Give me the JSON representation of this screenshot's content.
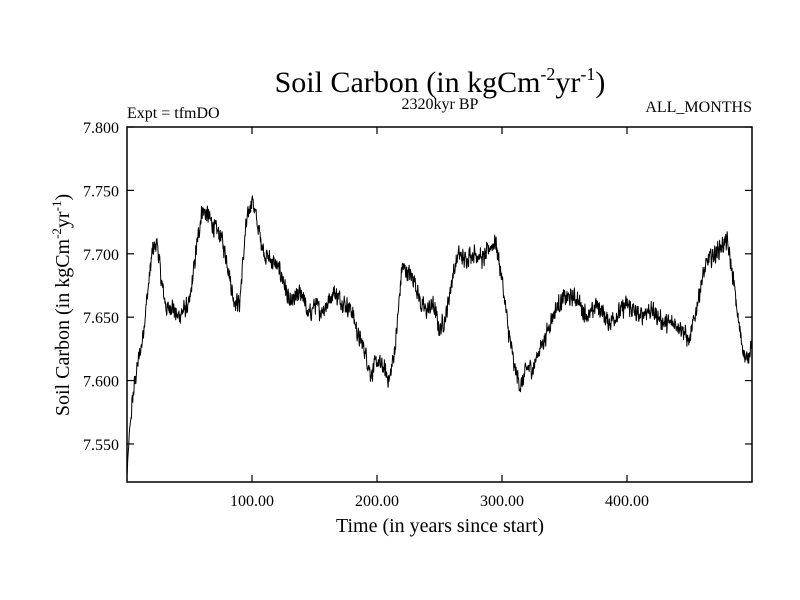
{
  "chart_data": {
    "type": "line",
    "title_prefix": "Soil Carbon (in kgCm",
    "title_sup1": "-2",
    "title_mid": "yr",
    "title_sup2": "-1",
    "title_suffix": ")",
    "subtitle_left": "Expt = tfmDO",
    "subtitle_center": "2320kyr BP",
    "subtitle_right": "ALL_MONTHS",
    "xlabel": "Time (in years since start)",
    "ylabel_prefix": "Soil Carbon (in kgCm",
    "ylabel_sup1": "-2",
    "ylabel_mid": "yr",
    "ylabel_sup2": "-1",
    "ylabel_suffix": ")",
    "xlim": [
      0,
      500
    ],
    "ylim": [
      7.52,
      7.8
    ],
    "xticks": [
      100,
      200,
      300,
      400
    ],
    "xtick_labels": [
      "100.00",
      "200.00",
      "300.00",
      "400.00"
    ],
    "yticks": [
      7.55,
      7.6,
      7.65,
      7.7,
      7.75,
      7.8
    ],
    "ytick_labels": [
      "7.550",
      "7.600",
      "7.650",
      "7.700",
      "7.750",
      "7.800"
    ],
    "line_color": "#000000",
    "noise_amplitude": 0.009,
    "series": [
      {
        "name": "Soil Carbon",
        "x": [
          0,
          2,
          5,
          8,
          12,
          16,
          20,
          24,
          28,
          32,
          36,
          40,
          45,
          50,
          55,
          60,
          65,
          70,
          75,
          80,
          85,
          90,
          95,
          100,
          105,
          110,
          115,
          120,
          125,
          130,
          135,
          140,
          145,
          150,
          155,
          160,
          165,
          170,
          175,
          180,
          185,
          190,
          195,
          200,
          205,
          210,
          215,
          220,
          225,
          230,
          235,
          240,
          245,
          250,
          255,
          260,
          265,
          270,
          275,
          280,
          285,
          290,
          295,
          300,
          305,
          310,
          315,
          320,
          325,
          330,
          335,
          340,
          345,
          350,
          355,
          360,
          365,
          370,
          375,
          380,
          385,
          390,
          395,
          400,
          405,
          410,
          415,
          420,
          425,
          430,
          435,
          440,
          445,
          450,
          455,
          460,
          465,
          470,
          475,
          480,
          485,
          490,
          495,
          500
        ],
        "y": [
          7.525,
          7.56,
          7.59,
          7.61,
          7.63,
          7.665,
          7.7,
          7.71,
          7.675,
          7.655,
          7.66,
          7.65,
          7.655,
          7.66,
          7.7,
          7.735,
          7.73,
          7.72,
          7.715,
          7.695,
          7.665,
          7.66,
          7.72,
          7.745,
          7.72,
          7.7,
          7.695,
          7.69,
          7.68,
          7.66,
          7.665,
          7.67,
          7.65,
          7.66,
          7.655,
          7.66,
          7.67,
          7.665,
          7.66,
          7.655,
          7.635,
          7.625,
          7.605,
          7.615,
          7.61,
          7.6,
          7.63,
          7.69,
          7.685,
          7.68,
          7.66,
          7.655,
          7.66,
          7.64,
          7.65,
          7.68,
          7.7,
          7.695,
          7.7,
          7.7,
          7.695,
          7.705,
          7.71,
          7.68,
          7.64,
          7.61,
          7.595,
          7.61,
          7.61,
          7.625,
          7.635,
          7.65,
          7.66,
          7.665,
          7.665,
          7.665,
          7.655,
          7.65,
          7.66,
          7.655,
          7.645,
          7.65,
          7.655,
          7.66,
          7.655,
          7.65,
          7.655,
          7.655,
          7.65,
          7.645,
          7.645,
          7.645,
          7.64,
          7.63,
          7.655,
          7.68,
          7.695,
          7.7,
          7.705,
          7.71,
          7.68,
          7.64,
          7.615,
          7.63
        ]
      }
    ]
  }
}
